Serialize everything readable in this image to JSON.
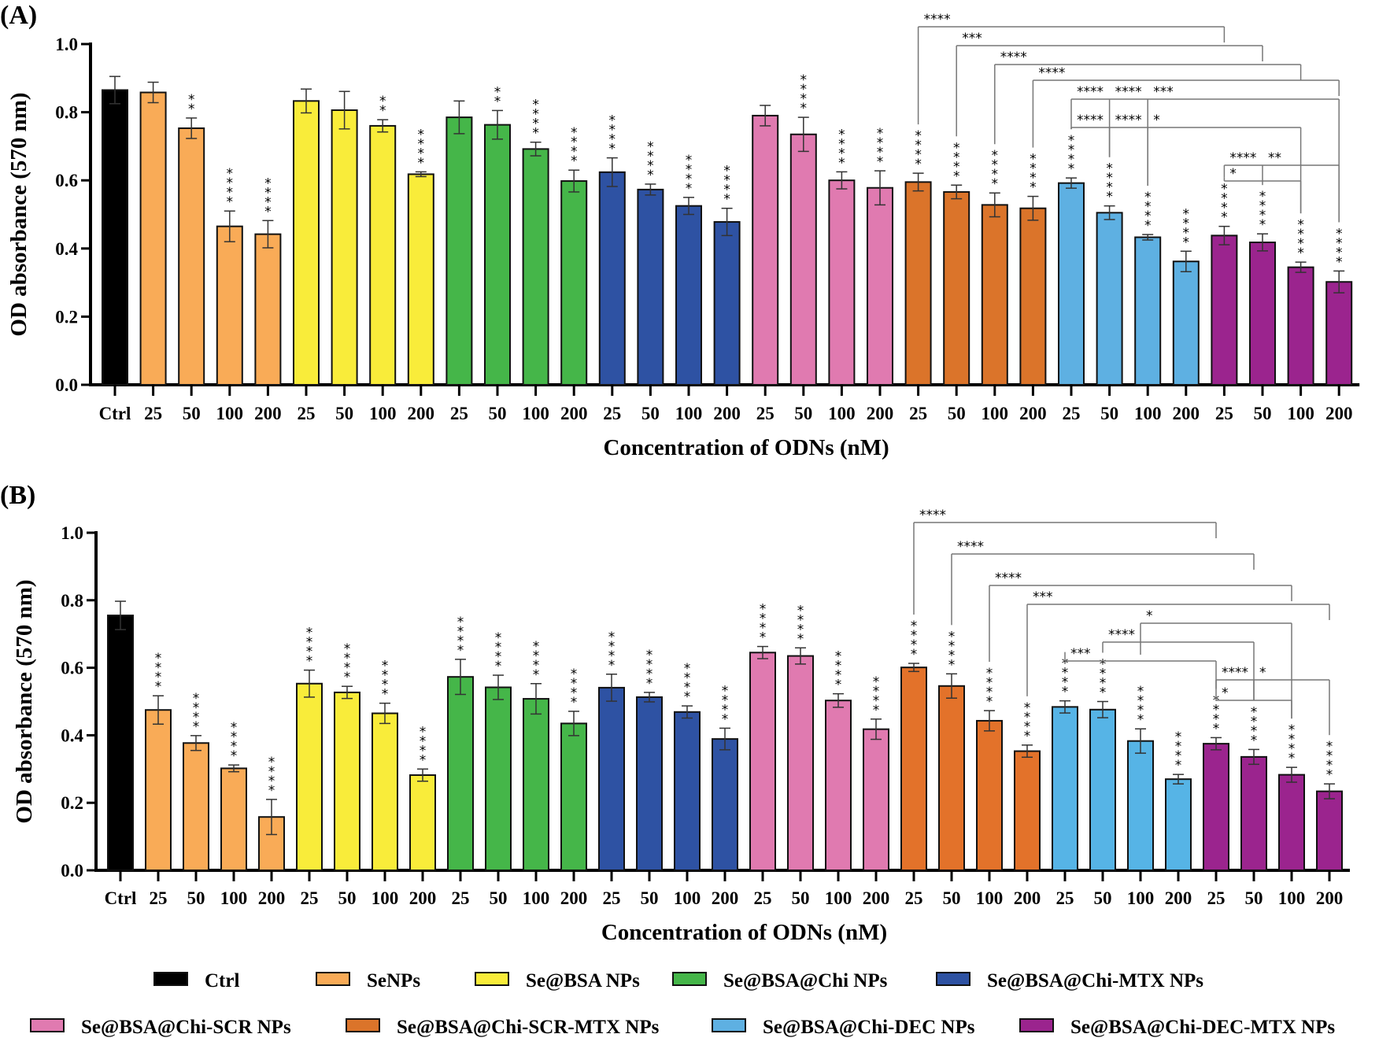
{
  "chart_data": [
    {
      "type": "bar",
      "panel_label": "(A)",
      "xlabel": "Concentration of ODNs (nM)",
      "ylabel": "OD absorbance (570 nm)",
      "ylim": [
        0,
        1.0
      ],
      "yticks": [
        "0.0",
        "0.2",
        "0.4",
        "0.6",
        "0.8",
        "1.0"
      ],
      "grid": false,
      "categories": [
        "Ctrl",
        "25",
        "50",
        "100",
        "200",
        "25",
        "50",
        "100",
        "200",
        "25",
        "50",
        "100",
        "200",
        "25",
        "50",
        "100",
        "200",
        "25",
        "50",
        "100",
        "200",
        "25",
        "50",
        "100",
        "200",
        "25",
        "50",
        "100",
        "200",
        "25",
        "50",
        "100",
        "200"
      ],
      "groups": [
        "Ctrl",
        "SeNPs",
        "SeNPs",
        "SeNPs",
        "SeNPs",
        "Se@BSA NPs",
        "Se@BSA NPs",
        "Se@BSA NPs",
        "Se@BSA NPs",
        "Se@BSA@Chi NPs",
        "Se@BSA@Chi NPs",
        "Se@BSA@Chi NPs",
        "Se@BSA@Chi NPs",
        "Se@BSA@Chi-MTX NPs",
        "Se@BSA@Chi-MTX NPs",
        "Se@BSA@Chi-MTX NPs",
        "Se@BSA@Chi-MTX NPs",
        "Se@BSA@Chi-SCR NPs",
        "Se@BSA@Chi-SCR NPs",
        "Se@BSA@Chi-SCR NPs",
        "Se@BSA@Chi-SCR NPs",
        "Se@BSA@Chi-SCR-MTX NPs",
        "Se@BSA@Chi-SCR-MTX NPs",
        "Se@BSA@Chi-SCR-MTX NPs",
        "Se@BSA@Chi-SCR-MTX NPs",
        "Se@BSA@Chi-DEC NPs",
        "Se@BSA@Chi-DEC NPs",
        "Se@BSA@Chi-DEC NPs",
        "Se@BSA@Chi-DEC NPs",
        "Se@BSA@Chi-DEC-MTX NPs",
        "Se@BSA@Chi-DEC-MTX NPs",
        "Se@BSA@Chi-DEC-MTX NPs",
        "Se@BSA@Chi-DEC-MTX NPs"
      ],
      "values": [
        0.865,
        0.858,
        0.753,
        0.465,
        0.442,
        0.833,
        0.806,
        0.76,
        0.618,
        0.785,
        0.763,
        0.692,
        0.598,
        0.624,
        0.573,
        0.525,
        0.478,
        0.79,
        0.735,
        0.6,
        0.578,
        0.595,
        0.566,
        0.528,
        0.518,
        0.592,
        0.505,
        0.433,
        0.362,
        0.438,
        0.418,
        0.345,
        0.302
      ],
      "errors": [
        0.04,
        0.03,
        0.03,
        0.045,
        0.04,
        0.035,
        0.055,
        0.018,
        0.007,
        0.048,
        0.042,
        0.02,
        0.032,
        0.042,
        0.016,
        0.025,
        0.04,
        0.03,
        0.05,
        0.025,
        0.05,
        0.026,
        0.02,
        0.035,
        0.035,
        0.015,
        0.02,
        0.008,
        0.03,
        0.027,
        0.025,
        0.015,
        0.032
      ],
      "significance": [
        "",
        "",
        "**",
        "****",
        "****",
        "",
        "",
        "**",
        "****",
        "",
        "**",
        "****",
        "****",
        "****",
        "****",
        "****",
        "****",
        "",
        "****",
        "****",
        "****",
        "****",
        "****",
        "****",
        "****",
        "****",
        "****",
        "****",
        "****",
        "****",
        "****",
        "****",
        "****"
      ],
      "brackets": [
        {
          "from": 21,
          "to": [
            29
          ],
          "labels": [
            "****"
          ]
        },
        {
          "from": 22,
          "to": [
            30
          ],
          "labels": [
            "***"
          ]
        },
        {
          "from": 23,
          "to": [
            31
          ],
          "labels": [
            "****"
          ]
        },
        {
          "from": 24,
          "to": [
            32
          ],
          "labels": [
            "****"
          ]
        },
        {
          "from": 25,
          "mid": [
            26,
            27
          ],
          "to": [
            32
          ],
          "labels": [
            "****",
            "****",
            "***"
          ]
        },
        {
          "from": 25,
          "mid": [
            26,
            27
          ],
          "to": [
            31
          ],
          "labels": [
            "****",
            "****",
            "*"
          ]
        },
        {
          "from": 29,
          "mid": [
            30
          ],
          "to": [
            32
          ],
          "labels": [
            "****",
            "**"
          ]
        },
        {
          "from": 29,
          "to": [
            31
          ],
          "labels": [
            "*"
          ]
        }
      ]
    },
    {
      "type": "bar",
      "panel_label": "(B)",
      "xlabel": "Concentration of ODNs (nM)",
      "ylabel": "OD absorbance (570 nm)",
      "ylim": [
        0,
        1.0
      ],
      "yticks": [
        "0.0",
        "0.2",
        "0.4",
        "0.6",
        "0.8",
        "1.0"
      ],
      "grid": false,
      "categories": [
        "Ctrl",
        "25",
        "50",
        "100",
        "200",
        "25",
        "50",
        "100",
        "200",
        "25",
        "50",
        "100",
        "200",
        "25",
        "50",
        "100",
        "200",
        "25",
        "50",
        "100",
        "200",
        "25",
        "50",
        "100",
        "200",
        "25",
        "50",
        "100",
        "200",
        "25",
        "50",
        "100",
        "200"
      ],
      "values": [
        0.755,
        0.475,
        0.377,
        0.302,
        0.158,
        0.553,
        0.527,
        0.465,
        0.282,
        0.573,
        0.542,
        0.508,
        0.435,
        0.541,
        0.513,
        0.469,
        0.389,
        0.645,
        0.635,
        0.503,
        0.418,
        0.601,
        0.546,
        0.443,
        0.353,
        0.484,
        0.476,
        0.383,
        0.27,
        0.375,
        0.336,
        0.283,
        0.234
      ],
      "errors": [
        0.042,
        0.042,
        0.022,
        0.01,
        0.052,
        0.04,
        0.018,
        0.03,
        0.018,
        0.052,
        0.036,
        0.045,
        0.036,
        0.04,
        0.014,
        0.018,
        0.032,
        0.018,
        0.024,
        0.02,
        0.03,
        0.012,
        0.036,
        0.03,
        0.018,
        0.018,
        0.024,
        0.036,
        0.014,
        0.018,
        0.022,
        0.022,
        0.022
      ],
      "significance": [
        "",
        "****",
        "****",
        "****",
        "****",
        "****",
        "****",
        "****",
        "****",
        "****",
        "****",
        "****",
        "****",
        "****",
        "****",
        "****",
        "****",
        "****",
        "****",
        "****",
        "****",
        "****",
        "****",
        "****",
        "****",
        "****",
        "****",
        "****",
        "****",
        "****",
        "****",
        "****",
        "****"
      ],
      "brackets": [
        {
          "from": 21,
          "to": [
            29
          ],
          "labels": [
            "****"
          ]
        },
        {
          "from": 22,
          "to": [
            30
          ],
          "labels": [
            "****"
          ]
        },
        {
          "from": 23,
          "to": [
            31
          ],
          "labels": [
            "****"
          ]
        },
        {
          "from": 24,
          "to": [
            32
          ],
          "labels": [
            "***"
          ]
        },
        {
          "from": 27,
          "to": [
            31
          ],
          "labels": [
            "*"
          ]
        },
        {
          "from": 26,
          "to": [
            30
          ],
          "labels": [
            "****"
          ]
        },
        {
          "from": 25,
          "to": [
            29
          ],
          "labels": [
            "***"
          ]
        },
        {
          "from": 29,
          "mid": [
            30
          ],
          "to": [
            32
          ],
          "labels": [
            "****",
            "*"
          ]
        },
        {
          "from": 29,
          "to": [
            31
          ],
          "labels": [
            "*"
          ]
        }
      ]
    }
  ],
  "legend": [
    {
      "name": "Ctrl",
      "color": "#000000"
    },
    {
      "name": "SeNPs",
      "color": "#F9AB57"
    },
    {
      "name": "Se@BSA NPs",
      "color": "#F9EC3A"
    },
    {
      "name": "Se@BSA@Chi NPs",
      "color": "#45B649"
    },
    {
      "name": "Se@BSA@Chi-MTX NPs",
      "color": "#2E52A3"
    },
    {
      "name": "Se@BSA@Chi-SCR NPs",
      "color": "#E07AB0"
    },
    {
      "name": "Se@BSA@Chi-SCR-MTX NPs",
      "color": "#DB742A"
    },
    {
      "name": "Se@BSA@Chi-DEC NPs",
      "color": "#5EB0E2"
    },
    {
      "name": "Se@BSA@Chi-DEC-MTX NPs",
      "color": "#9B248E"
    }
  ]
}
